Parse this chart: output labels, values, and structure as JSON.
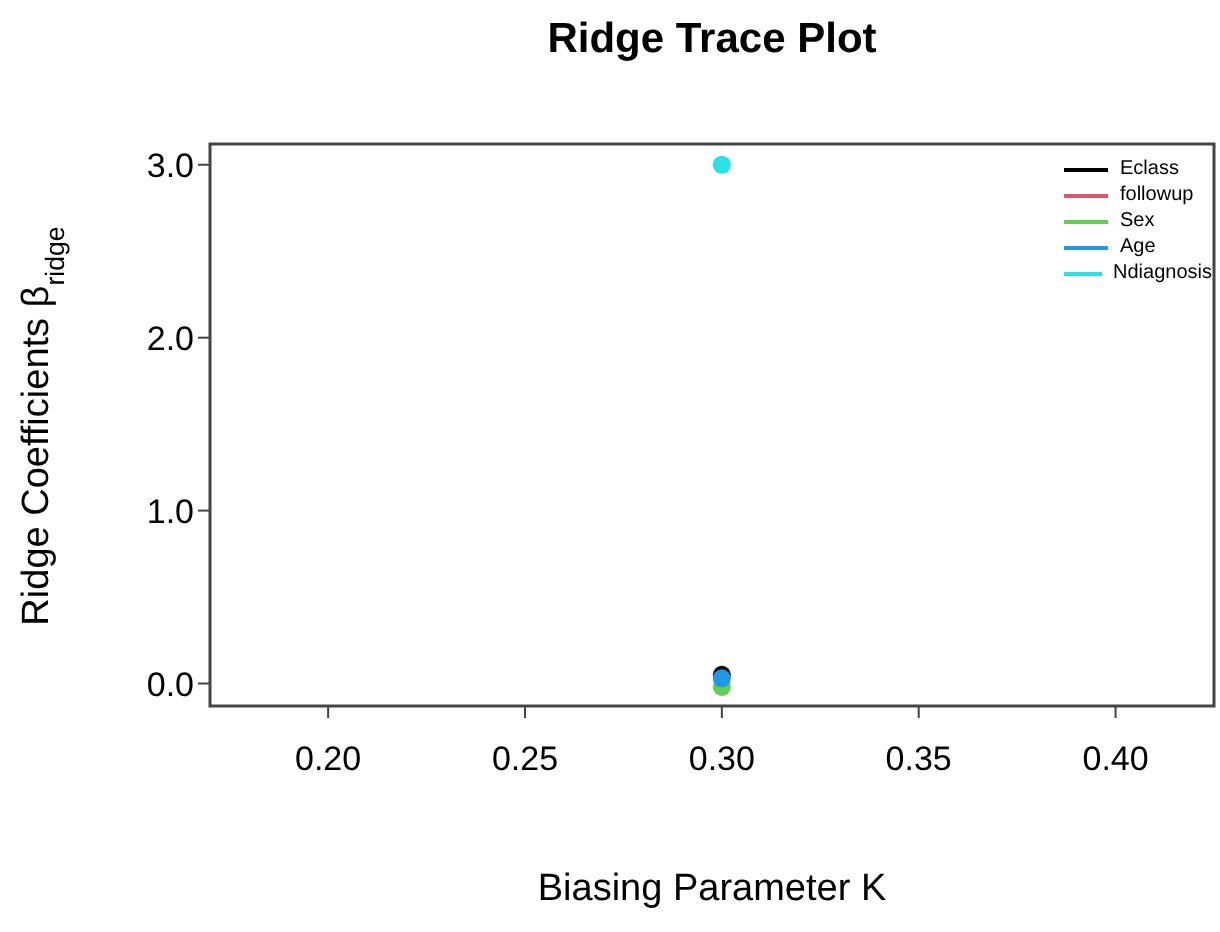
{
  "chart_data": {
    "type": "scatter",
    "title": "Ridge Trace Plot",
    "xlabel": "Biasing Parameter K",
    "ylabel": "Ridge Coefficients β$_{ridge}$",
    "x": [
      0.3
    ],
    "series": [
      {
        "name": "Eclass",
        "color": "#000000",
        "values": [
          0.05
        ]
      },
      {
        "name": "followup",
        "color": "#df536b",
        "values": [
          null
        ]
      },
      {
        "name": "Sex",
        "color": "#61d04f",
        "values": [
          -0.02
        ]
      },
      {
        "name": "Age",
        "color": "#2297e6",
        "values": [
          0.03
        ]
      },
      {
        "name": "Ndiagnosis",
        "color": "#28e2e5",
        "values": [
          3.0
        ]
      }
    ],
    "xlim": [
      0.17,
      0.425
    ],
    "xticks": [
      {
        "value": 0.2,
        "label": "0.20"
      },
      {
        "value": 0.25,
        "label": "0.25"
      },
      {
        "value": 0.3,
        "label": "0.30"
      },
      {
        "value": 0.35,
        "label": "0.35"
      },
      {
        "value": 0.4,
        "label": "0.40"
      }
    ],
    "ylim": [
      -0.13,
      3.12
    ],
    "yticks": [
      {
        "value": 0,
        "label": "0.0"
      },
      {
        "value": 1,
        "label": "1.0"
      },
      {
        "value": 2,
        "label": "2.0"
      },
      {
        "value": 3,
        "label": "3.0"
      }
    ],
    "grid": false,
    "legend": "top right",
    "marker": "circle"
  }
}
